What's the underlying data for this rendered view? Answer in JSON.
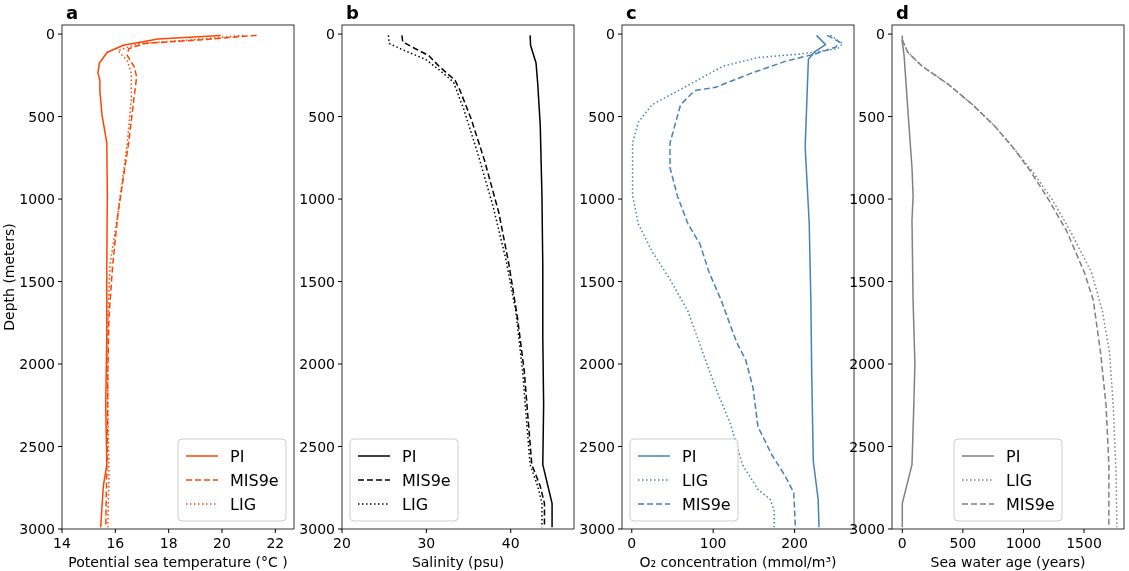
{
  "chart_data": [
    {
      "type": "line",
      "title": "a",
      "xlabel": "Potential sea temperature (°C )",
      "ylabel": "Depth (meters)",
      "xlim": [
        14,
        22.7
      ],
      "xticks": [
        14,
        16,
        18,
        20,
        22
      ],
      "ylim": [
        3000,
        -55
      ],
      "yticks": [
        0,
        500,
        1000,
        1500,
        2000,
        2500,
        3000
      ],
      "legend": "bottom right",
      "series": [
        {
          "name": "PI",
          "color": "#ff4500",
          "line_style": "solid",
          "x": [
            19.95,
            17.6,
            16.3,
            15.7,
            15.4,
            15.35,
            15.42,
            15.42,
            15.5,
            15.68,
            15.7,
            15.68,
            15.68,
            15.64,
            15.68,
            15.55,
            15.45
          ],
          "values": [
            8,
            30,
            68,
            110,
            175,
            237,
            280,
            343,
            490,
            660,
            980,
            1400,
            1830,
            2250,
            2610,
            2740,
            2990
          ]
        },
        {
          "name": "MIS9e",
          "color": "#ff4500",
          "line_style": "dashed",
          "x": [
            21.3,
            19.1,
            17.1,
            16.5,
            16.45,
            16.7,
            16.8,
            16.7,
            16.5,
            16.1,
            15.9,
            15.76,
            15.72,
            15.7,
            15.64
          ],
          "values": [
            8,
            36,
            57,
            89,
            131,
            195,
            259,
            386,
            660,
            1085,
            1400,
            1720,
            2040,
            2460,
            2990
          ]
        },
        {
          "name": "LIG",
          "color": "#ff4500",
          "line_style": "dotted",
          "x": [
            20.8,
            18.8,
            16.9,
            16.1,
            16.45,
            16.6,
            16.6,
            16.45,
            16.1,
            15.8,
            15.7,
            15.72,
            15.76,
            15.72
          ],
          "values": [
            8,
            36,
            57,
            100,
            163,
            237,
            386,
            660,
            1085,
            1400,
            1830,
            2250,
            2675,
            2990
          ]
        }
      ]
    },
    {
      "type": "line",
      "title": "b",
      "xlabel": "Salinity (psu)",
      "xlim": [
        20,
        47.5
      ],
      "xticks": [
        20,
        30,
        40
      ],
      "ylim": [
        3000,
        -55
      ],
      "yticks": [
        0,
        500,
        1000,
        1500,
        2000,
        2500,
        3000
      ],
      "legend": "bottom left",
      "series": [
        {
          "name": "PI",
          "color": "#000000",
          "line_style": "solid",
          "x": [
            42.3,
            42.35,
            43.0,
            43.2,
            43.5,
            43.7,
            43.8,
            43.8,
            43.9,
            43.8,
            44.9,
            44.9
          ],
          "values": [
            8,
            68,
            175,
            300,
            555,
            980,
            1400,
            1830,
            2250,
            2610,
            2845,
            2990
          ]
        },
        {
          "name": "MIS9e",
          "color": "#000000",
          "line_style": "dashed",
          "x": [
            27.1,
            27.2,
            28.7,
            30.3,
            31.5,
            33.4,
            34.0,
            35.3,
            36.9,
            38.6,
            39.8,
            40.8,
            41.6,
            42.1,
            42.5,
            43.5,
            44.0,
            44.0
          ],
          "values": [
            8,
            47,
            89,
            131,
            195,
            280,
            343,
            513,
            767,
            1085,
            1400,
            1720,
            2040,
            2360,
            2610,
            2740,
            2845,
            2990
          ]
        },
        {
          "name": "LIG",
          "color": "#000000",
          "line_style": "dotted",
          "x": [
            25.5,
            25.6,
            27.4,
            29.9,
            31.5,
            33.2,
            34.4,
            36.1,
            37.9,
            39.4,
            40.6,
            41.4,
            41.9,
            42.3,
            43.2,
            43.7,
            43.7
          ],
          "values": [
            8,
            57,
            100,
            153,
            216,
            290,
            450,
            725,
            1043,
            1360,
            1680,
            2040,
            2360,
            2610,
            2740,
            2845,
            2990
          ]
        }
      ]
    },
    {
      "type": "line",
      "title": "c",
      "xlabel": "O₂ concentration (mmol/m³)",
      "xlim": [
        -12,
        273
      ],
      "xticks": [
        0,
        100,
        200
      ],
      "ylim": [
        3000,
        -55
      ],
      "yticks": [
        0,
        500,
        1000,
        1500,
        2000,
        2500,
        3000
      ],
      "legend": "bottom left",
      "series": [
        {
          "name": "PI",
          "color": "#4682b4",
          "line_style": "solid",
          "x": [
            227,
            238,
            225,
            217,
            216,
            214,
            213,
            218,
            220,
            221,
            223,
            229,
            230
          ],
          "values": [
            8,
            64,
            106,
            153,
            280,
            555,
            682,
            1150,
            1615,
            2040,
            2590,
            2820,
            2990
          ]
        },
        {
          "name": "LIG",
          "color": "#4682b4",
          "line_style": "dotted",
          "x": [
            244,
            259,
            253,
            207,
            155,
            112,
            69,
            25,
            8,
            1,
            1,
            8,
            25,
            47,
            69,
            86,
            103,
            121,
            136,
            155,
            170,
            175,
            175
          ],
          "values": [
            8,
            57,
            89,
            121,
            142,
            195,
            311,
            428,
            534,
            660,
            980,
            1150,
            1318,
            1488,
            1680,
            1913,
            2145,
            2360,
            2610,
            2760,
            2820,
            2890,
            2990
          ]
        },
        {
          "name": "MIS9e",
          "color": "#4682b4",
          "line_style": "dashed",
          "x": [
            240,
            255,
            251,
            225,
            190,
            147,
            103,
            77,
            60,
            47,
            47,
            56,
            69,
            84,
            95,
            110,
            121,
            129,
            140,
            149,
            155,
            172,
            188,
            199,
            201
          ],
          "values": [
            8,
            47,
            78,
            121,
            163,
            237,
            322,
            343,
            428,
            660,
            810,
            980,
            1150,
            1276,
            1445,
            1615,
            1764,
            1870,
            1976,
            2145,
            2380,
            2550,
            2675,
            2780,
            2990
          ]
        }
      ]
    },
    {
      "type": "line",
      "title": "d",
      "xlabel": "Sea water age (years)",
      "xlim": [
        -85,
        1830
      ],
      "xticks": [
        0,
        500,
        1000,
        1500
      ],
      "ylim": [
        3000,
        -55
      ],
      "yticks": [
        0,
        500,
        1000,
        1500,
        2000,
        2500,
        3000
      ],
      "legend": "bottom",
      "series": [
        {
          "name": "PI",
          "color": "#808080",
          "line_style": "solid",
          "x": [
            0,
            0,
            15,
            45,
            80,
            89,
            80,
            89,
            104,
            95,
            80,
            0,
            0
          ],
          "values": [
            8,
            47,
            131,
            450,
            810,
            980,
            1130,
            1615,
            1997,
            2250,
            2610,
            2845,
            2990
          ]
        },
        {
          "name": "LIG",
          "color": "#808080",
          "line_style": "dotted",
          "x": [
            0,
            45,
            164,
            372,
            580,
            759,
            908,
            1071,
            1235,
            1384,
            1562,
            1652,
            1711,
            1741,
            1765,
            1771
          ],
          "values": [
            36,
            110,
            195,
            300,
            428,
            555,
            682,
            830,
            1000,
            1190,
            1445,
            1680,
            1933,
            2250,
            2675,
            2990
          ]
        },
        {
          "name": "MIS9e",
          "color": "#808080",
          "line_style": "dashed",
          "x": [
            0,
            45,
            164,
            372,
            580,
            759,
            908,
            1057,
            1205,
            1354,
            1503,
            1577,
            1637,
            1682,
            1705,
            1705
          ],
          "values": [
            36,
            110,
            195,
            300,
            428,
            555,
            682,
            830,
            1000,
            1190,
            1445,
            1615,
            1933,
            2250,
            2610,
            2990
          ]
        }
      ]
    }
  ]
}
